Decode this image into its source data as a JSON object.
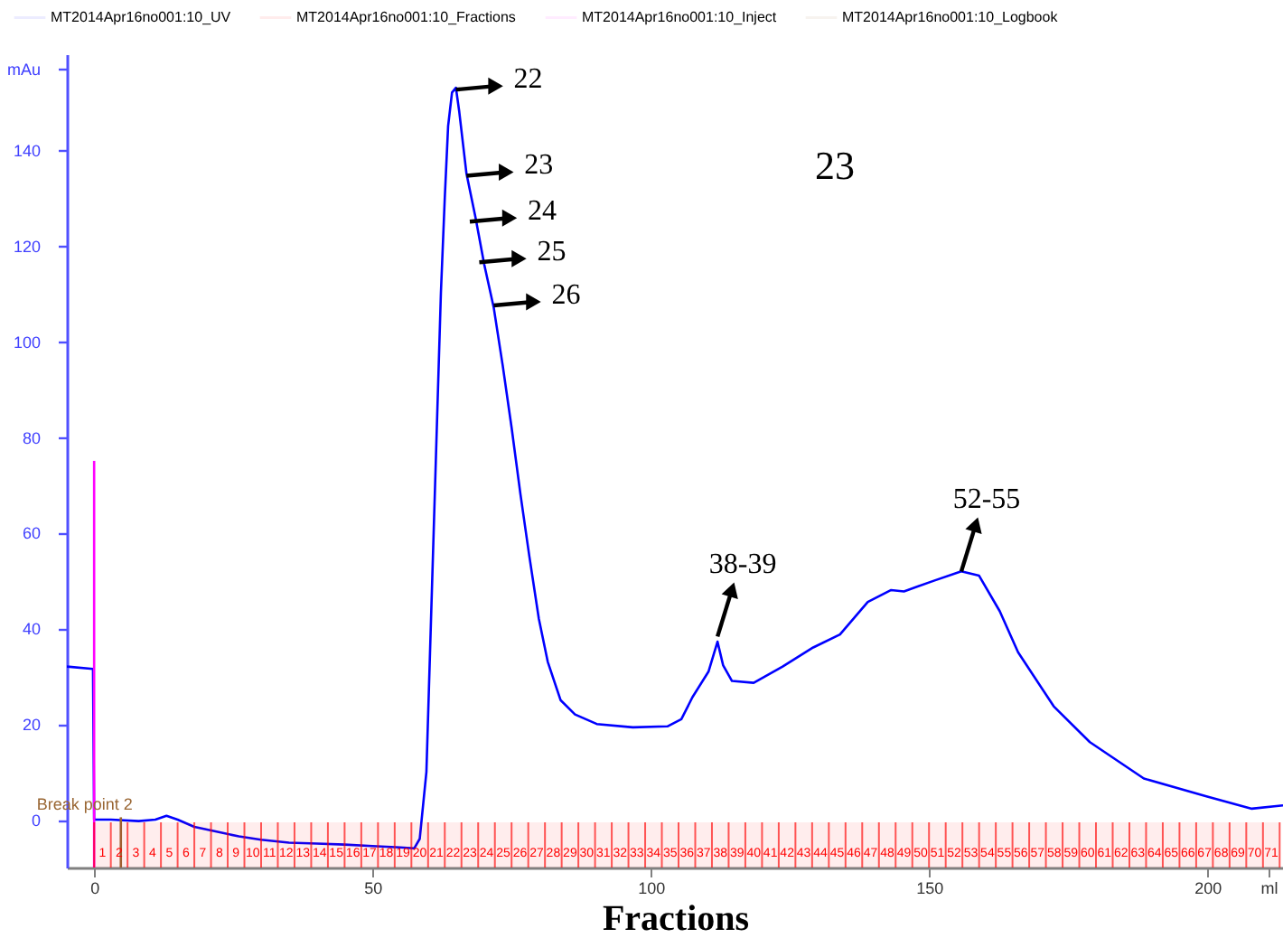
{
  "chart_data": {
    "type": "line",
    "xlabel": "Fractions",
    "xlim": [
      -4.9,
      213.6
    ],
    "ylim": [
      -10,
      160
    ],
    "xticks": [
      0,
      50,
      100,
      150,
      200,
      {
        "value": 211,
        "label": "ml"
      }
    ],
    "yticks": [
      0,
      20,
      40,
      60,
      80,
      100,
      120,
      140,
      {
        "value": 157,
        "label": "mAu"
      }
    ],
    "grid": false,
    "legend": "top",
    "marker": "none",
    "line_style": "solid",
    "series": [
      {
        "name": "MT2014Apr16no001:10_UV",
        "color": "#0000ff",
        "x": [
          -4.9,
          -0.2,
          0,
          3,
          8,
          11,
          13,
          15,
          18,
          22,
          26,
          30,
          35,
          40,
          45,
          50,
          55,
          57.5,
          58.5,
          59.7,
          61,
          62.3,
          63,
          63.6,
          64.3,
          65,
          65.6,
          66.9,
          68.5,
          70.1,
          71.8,
          73.4,
          75,
          76.6,
          78.2,
          79.9,
          81.5,
          83.8,
          86.4,
          90.3,
          96.8,
          103,
          105.5,
          107.5,
          110.4,
          112,
          113,
          114.6,
          118.5,
          123.7,
          129.2,
          134,
          139,
          143.2,
          145.5,
          151,
          155.8,
          159,
          162.7,
          166,
          172.4,
          178.9,
          188.6,
          199.7,
          208,
          213.6
        ],
        "values": [
          32,
          31.5,
          0,
          0,
          -0.3,
          0,
          0.8,
          0,
          -1.5,
          -2.5,
          -3.5,
          -4.2,
          -4.8,
          -5,
          -5.2,
          -5.5,
          -5.8,
          -6,
          -4,
          10,
          60,
          110,
          130,
          145,
          152,
          153,
          148,
          135,
          126,
          116,
          107,
          95,
          82,
          68,
          55,
          42,
          33,
          25,
          22,
          20,
          19.3,
          19.5,
          21,
          25.6,
          31,
          37.2,
          32.3,
          29,
          28.6,
          32,
          36,
          38.7,
          45.5,
          48,
          47.7,
          50,
          51.9,
          51,
          43.6,
          35,
          23.7,
          16.2,
          8.6,
          4.9,
          2.3,
          3
        ]
      },
      {
        "name": "MT2014Apr16no001:10_Fractions",
        "color": "#ff0000",
        "type": "other"
      },
      {
        "name": "MT2014Apr16no001:10_Inject",
        "color": "#ff00ff",
        "x": [
          0,
          0
        ],
        "values": [
          -10,
          75
        ]
      },
      {
        "name": "MT2014Apr16no001:10_Logbook",
        "color": "#996633",
        "x": [
          4.8,
          4.8
        ],
        "values": [
          -10,
          0.5
        ]
      }
    ],
    "annotations": [
      {
        "text": "22",
        "x": 65,
        "y": 152.6
      },
      {
        "text": "23",
        "x": 66.9,
        "y": 134.6
      },
      {
        "text": "24",
        "x": 67.5,
        "y": 125
      },
      {
        "text": "25",
        "x": 69.2,
        "y": 116.5
      },
      {
        "text": "26",
        "x": 71.8,
        "y": 107.5
      },
      {
        "text": "38-39",
        "x": 112,
        "y": 38.3
      },
      {
        "text": "52-55",
        "x": 155.8,
        "y": 51.9
      },
      "23",
      {
        "text": "Break point 2",
        "x": 4.8,
        "y": 0.5
      }
    ],
    "bands": [
      {
        "axis": "x",
        "from": 0,
        "to": 3,
        "label": "1"
      },
      {
        "axis": "x",
        "from": 3,
        "to": 6,
        "label": "2"
      },
      {
        "axis": "x",
        "from": 6,
        "to": 9,
        "label": "3"
      },
      {
        "axis": "x",
        "from": 9,
        "to": 12,
        "label": "4"
      },
      {
        "axis": "x",
        "from": 12,
        "to": 15,
        "label": "5"
      },
      {
        "axis": "x",
        "from": 15,
        "to": 18,
        "label": "6"
      },
      {
        "axis": "x",
        "from": 18,
        "to": 21,
        "label": "7"
      },
      {
        "axis": "x",
        "from": 21,
        "to": 24,
        "label": "8"
      },
      {
        "axis": "x",
        "from": 24,
        "to": 27,
        "label": "9"
      },
      {
        "axis": "x",
        "from": 27,
        "to": 30,
        "label": "10"
      },
      {
        "axis": "x",
        "from": 30,
        "to": 33,
        "label": "11"
      },
      {
        "axis": "x",
        "from": 33,
        "to": 36,
        "label": "12"
      },
      {
        "axis": "x",
        "from": 36,
        "to": 39,
        "label": "13"
      },
      {
        "axis": "x",
        "from": 39,
        "to": 42,
        "label": "14"
      },
      {
        "axis": "x",
        "from": 42,
        "to": 45,
        "label": "15"
      },
      {
        "axis": "x",
        "from": 45,
        "to": 48,
        "label": "16"
      },
      {
        "axis": "x",
        "from": 48,
        "to": 51,
        "label": "17"
      },
      {
        "axis": "x",
        "from": 51,
        "to": 54,
        "label": "18"
      },
      {
        "axis": "x",
        "from": 54,
        "to": 57,
        "label": "19"
      },
      {
        "axis": "x",
        "from": 57,
        "to": 60,
        "label": "20"
      },
      {
        "axis": "x",
        "from": 60,
        "to": 63,
        "label": "21"
      },
      {
        "axis": "x",
        "from": 63,
        "to": 66,
        "label": "22"
      },
      {
        "axis": "x",
        "from": 66,
        "to": 69,
        "label": "23"
      },
      {
        "axis": "x",
        "from": 69,
        "to": 72,
        "label": "24"
      },
      {
        "axis": "x",
        "from": 72,
        "to": 75,
        "label": "25"
      },
      {
        "axis": "x",
        "from": 75,
        "to": 78,
        "label": "26"
      },
      {
        "axis": "x",
        "from": 78,
        "to": 81,
        "label": "27"
      },
      {
        "axis": "x",
        "from": 81,
        "to": 84,
        "label": "28"
      },
      {
        "axis": "x",
        "from": 84,
        "to": 87,
        "label": "29"
      },
      {
        "axis": "x",
        "from": 87,
        "to": 90,
        "label": "30"
      },
      {
        "axis": "x",
        "from": 90,
        "to": 93,
        "label": "31"
      },
      {
        "axis": "x",
        "from": 93,
        "to": 96,
        "label": "32"
      },
      {
        "axis": "x",
        "from": 96,
        "to": 99,
        "label": "33"
      },
      {
        "axis": "x",
        "from": 99,
        "to": 102,
        "label": "34"
      },
      {
        "axis": "x",
        "from": 102,
        "to": 105,
        "label": "35"
      },
      {
        "axis": "x",
        "from": 105,
        "to": 108,
        "label": "36"
      },
      {
        "axis": "x",
        "from": 108,
        "to": 111,
        "label": "37"
      },
      {
        "axis": "x",
        "from": 111,
        "to": 114,
        "label": "38"
      },
      {
        "axis": "x",
        "from": 114,
        "to": 117,
        "label": "39"
      },
      {
        "axis": "x",
        "from": 117,
        "to": 120,
        "label": "40"
      },
      {
        "axis": "x",
        "from": 120,
        "to": 123,
        "label": "41"
      },
      {
        "axis": "x",
        "from": 123,
        "to": 126,
        "label": "42"
      },
      {
        "axis": "x",
        "from": 126,
        "to": 129,
        "label": "43"
      },
      {
        "axis": "x",
        "from": 129,
        "to": 132,
        "label": "44"
      },
      {
        "axis": "x",
        "from": 132,
        "to": 135,
        "label": "45"
      },
      {
        "axis": "x",
        "from": 135,
        "to": 138,
        "label": "46"
      },
      {
        "axis": "x",
        "from": 138,
        "to": 141,
        "label": "47"
      },
      {
        "axis": "x",
        "from": 141,
        "to": 144,
        "label": "48"
      },
      {
        "axis": "x",
        "from": 144,
        "to": 147,
        "label": "49"
      },
      {
        "axis": "x",
        "from": 147,
        "to": 150,
        "label": "50"
      },
      {
        "axis": "x",
        "from": 150,
        "to": 153,
        "label": "51"
      },
      {
        "axis": "x",
        "from": 153,
        "to": 156,
        "label": "52"
      },
      {
        "axis": "x",
        "from": 156,
        "to": 159,
        "label": "53"
      },
      {
        "axis": "x",
        "from": 159,
        "to": 162,
        "label": "54"
      },
      {
        "axis": "x",
        "from": 162,
        "to": 165,
        "label": "55"
      },
      {
        "axis": "x",
        "from": 165,
        "to": 168,
        "label": "56"
      },
      {
        "axis": "x",
        "from": 168,
        "to": 171,
        "label": "57"
      },
      {
        "axis": "x",
        "from": 171,
        "to": 174,
        "label": "58"
      },
      {
        "axis": "x",
        "from": 174,
        "to": 177,
        "label": "59"
      },
      {
        "axis": "x",
        "from": 177,
        "to": 180,
        "label": "60"
      },
      {
        "axis": "x",
        "from": 180,
        "to": 183,
        "label": "61"
      },
      {
        "axis": "x",
        "from": 183,
        "to": 186,
        "label": "62"
      },
      {
        "axis": "x",
        "from": 186,
        "to": 189,
        "label": "63"
      },
      {
        "axis": "x",
        "from": 189,
        "to": 192,
        "label": "64"
      },
      {
        "axis": "x",
        "from": 192,
        "to": 195,
        "label": "65"
      },
      {
        "axis": "x",
        "from": 195,
        "to": 198,
        "label": "66"
      },
      {
        "axis": "x",
        "from": 198,
        "to": 201,
        "label": "67"
      },
      {
        "axis": "x",
        "from": 201,
        "to": 204,
        "label": "68"
      },
      {
        "axis": "x",
        "from": 204,
        "to": 207,
        "label": "69"
      },
      {
        "axis": "x",
        "from": 207,
        "to": 210,
        "label": "70"
      },
      {
        "axis": "x",
        "from": 210,
        "to": 213,
        "label": "71"
      }
    ]
  }
}
